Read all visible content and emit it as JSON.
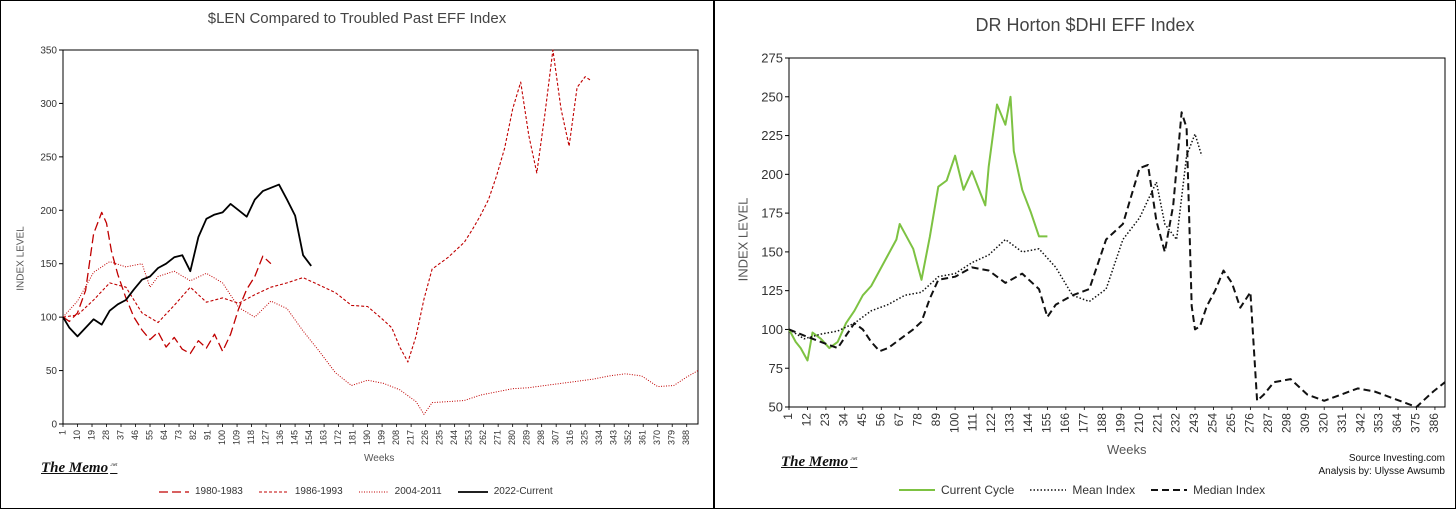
{
  "chart_data": [
    {
      "type": "line",
      "title": "$LEN Compared to Troubled Past EFF Index",
      "xlabel": "Weeks",
      "ylabel": "INDEX LEVEL",
      "ylim": [
        0,
        350
      ],
      "yticks": [
        0,
        50,
        100,
        150,
        200,
        250,
        300,
        350
      ],
      "xlim": [
        1,
        395
      ],
      "xticks": [
        "1",
        "10",
        "19",
        "28",
        "37",
        "46",
        "55",
        "64",
        "73",
        "82",
        "91",
        "100",
        "109",
        "118",
        "127",
        "136",
        "145",
        "154",
        "163",
        "172",
        "181",
        "190",
        "199",
        "208",
        "217",
        "226",
        "235",
        "244",
        "253",
        "262",
        "271",
        "280",
        "289",
        "298",
        "307",
        "316",
        "325",
        "334",
        "343",
        "352",
        "361",
        "370",
        "379",
        "388"
      ],
      "grid": false,
      "legend_position": "bottom",
      "series": [
        {
          "name": "1980-1983",
          "color": "#c00000",
          "dash": "9,4",
          "width": 1.3,
          "x": [
            1,
            5,
            10,
            15,
            20,
            25,
            28,
            31,
            35,
            40,
            45,
            50,
            55,
            60,
            65,
            70,
            75,
            80,
            85,
            90,
            95,
            100,
            105,
            110,
            115,
            120,
            125,
            130
          ],
          "y": [
            100,
            96,
            104,
            125,
            178,
            198,
            188,
            162,
            140,
            118,
            100,
            88,
            79,
            86,
            72,
            81,
            70,
            66,
            78,
            71,
            84,
            68,
            84,
            108,
            126,
            138,
            157,
            150
          ]
        },
        {
          "name": "1986-1993",
          "color": "#c00000",
          "dash": "3,2",
          "width": 1.1,
          "x": [
            1,
            10,
            20,
            30,
            40,
            50,
            60,
            70,
            80,
            90,
            100,
            110,
            120,
            130,
            140,
            150,
            160,
            170,
            180,
            190,
            200,
            205,
            210,
            215,
            220,
            225,
            230,
            240,
            250,
            255,
            260,
            265,
            270,
            275,
            280,
            285,
            290,
            295,
            300,
            305,
            310,
            315,
            320,
            325,
            328
          ],
          "y": [
            100,
            102,
            116,
            132,
            128,
            104,
            95,
            111,
            128,
            114,
            118,
            113,
            121,
            128,
            132,
            137,
            130,
            123,
            111,
            110,
            97,
            90,
            72,
            58,
            82,
            117,
            145,
            156,
            170,
            182,
            195,
            210,
            232,
            258,
            295,
            320,
            270,
            235,
            290,
            350,
            295,
            260,
            315,
            325,
            322
          ]
        },
        {
          "name": "2004-2011",
          "color": "#c00000",
          "dash": "1,1.5",
          "width": 1,
          "x": [
            1,
            10,
            20,
            30,
            40,
            50,
            55,
            60,
            70,
            80,
            90,
            100,
            110,
            120,
            130,
            140,
            150,
            160,
            170,
            180,
            190,
            200,
            210,
            220,
            225,
            230,
            240,
            250,
            260,
            270,
            280,
            290,
            300,
            310,
            320,
            330,
            340,
            350,
            360,
            370,
            380,
            388,
            395
          ],
          "y": [
            100,
            115,
            142,
            152,
            147,
            150,
            128,
            138,
            143,
            134,
            141,
            132,
            109,
            100,
            115,
            108,
            87,
            68,
            48,
            36,
            41,
            38,
            32,
            21,
            9,
            20,
            21,
            22,
            27,
            30,
            33,
            34,
            36,
            38,
            40,
            42,
            45,
            47,
            45,
            35,
            36,
            44,
            50
          ]
        },
        {
          "name": "2022-Current",
          "color": "#000000",
          "dash": "",
          "width": 1.8,
          "x": [
            1,
            5,
            10,
            15,
            20,
            25,
            30,
            35,
            40,
            45,
            50,
            55,
            60,
            65,
            70,
            75,
            80,
            85,
            90,
            95,
            100,
            105,
            110,
            115,
            120,
            125,
            130,
            135,
            140,
            145,
            150,
            155
          ],
          "y": [
            100,
            90,
            82,
            90,
            98,
            93,
            106,
            112,
            116,
            126,
            135,
            138,
            146,
            150,
            156,
            158,
            143,
            175,
            192,
            196,
            198,
            206,
            200,
            194,
            210,
            218,
            221,
            224,
            210,
            195,
            158,
            148
          ]
        }
      ]
    },
    {
      "type": "line",
      "title": "DR Horton $DHI EFF Index",
      "xlabel": "Weeks",
      "ylabel": "INDEX LEVEL",
      "ylim": [
        50,
        275
      ],
      "yticks": [
        50,
        75,
        100,
        125,
        150,
        175,
        200,
        225,
        250,
        275
      ],
      "xlim": [
        1,
        392
      ],
      "xticks": [
        "1",
        "12",
        "23",
        "34",
        "45",
        "56",
        "67",
        "78",
        "89",
        "100",
        "111",
        "122",
        "133",
        "144",
        "155",
        "166",
        "177",
        "188",
        "199",
        "210",
        "221",
        "232",
        "243",
        "254",
        "265",
        "276",
        "287",
        "298",
        "309",
        "320",
        "331",
        "342",
        "353",
        "364",
        "375",
        "386"
      ],
      "grid": false,
      "legend_position": "bottom",
      "series": [
        {
          "name": "Current Cycle",
          "color": "#7dc242",
          "dash": "",
          "width": 2,
          "x": [
            1,
            5,
            8,
            12,
            15,
            20,
            25,
            30,
            35,
            40,
            45,
            50,
            55,
            60,
            65,
            67,
            70,
            75,
            80,
            85,
            90,
            95,
            100,
            105,
            110,
            115,
            118,
            120,
            125,
            130,
            133,
            135,
            140,
            145,
            150,
            155
          ],
          "y": [
            100,
            92,
            88,
            80,
            98,
            94,
            88,
            92,
            104,
            112,
            122,
            128,
            138,
            148,
            158,
            168,
            162,
            152,
            132,
            160,
            192,
            196,
            212,
            190,
            202,
            188,
            180,
            205,
            245,
            232,
            250,
            215,
            190,
            176,
            160,
            160
          ]
        },
        {
          "name": "Mean Index",
          "color": "#111111",
          "dash": "1.5,2",
          "width": 1.5,
          "x": [
            1,
            10,
            20,
            30,
            40,
            50,
            60,
            70,
            80,
            90,
            100,
            110,
            120,
            130,
            140,
            150,
            160,
            170,
            180,
            190,
            200,
            210,
            220,
            225,
            232,
            238,
            243,
            247
          ],
          "y": [
            100,
            94,
            97,
            99,
            104,
            112,
            116,
            122,
            124,
            134,
            136,
            143,
            148,
            158,
            150,
            152,
            140,
            122,
            118,
            126,
            158,
            172,
            195,
            168,
            158,
            212,
            226,
            212
          ]
        },
        {
          "name": "Median Index",
          "color": "#111111",
          "dash": "7,4",
          "width": 2,
          "x": [
            1,
            10,
            20,
            30,
            35,
            40,
            45,
            50,
            55,
            60,
            65,
            70,
            75,
            80,
            85,
            90,
            100,
            110,
            120,
            130,
            140,
            150,
            155,
            160,
            170,
            180,
            190,
            200,
            210,
            215,
            220,
            225,
            230,
            235,
            238,
            241,
            243,
            246,
            250,
            255,
            260,
            265,
            270,
            276,
            280,
            284,
            290,
            300,
            310,
            320,
            330,
            340,
            350,
            360,
            370,
            375,
            380,
            385,
            392
          ],
          "y": [
            100,
            96,
            92,
            88,
            96,
            104,
            100,
            92,
            86,
            88,
            92,
            96,
            100,
            105,
            120,
            132,
            134,
            140,
            138,
            130,
            136,
            126,
            108,
            116,
            122,
            126,
            158,
            168,
            204,
            206,
            170,
            150,
            180,
            240,
            230,
            115,
            100,
            102,
            115,
            125,
            138,
            130,
            114,
            124,
            54,
            58,
            66,
            68,
            58,
            54,
            58,
            62,
            60,
            56,
            52,
            50,
            55,
            60,
            66
          ]
        }
      ]
    }
  ],
  "branding": {
    "memo_text": "The Memo",
    "memo_sup": ".net"
  },
  "notes": {
    "source": "Source Investing.com",
    "analysis": "Analysis by: Ulysse Awsumb"
  }
}
